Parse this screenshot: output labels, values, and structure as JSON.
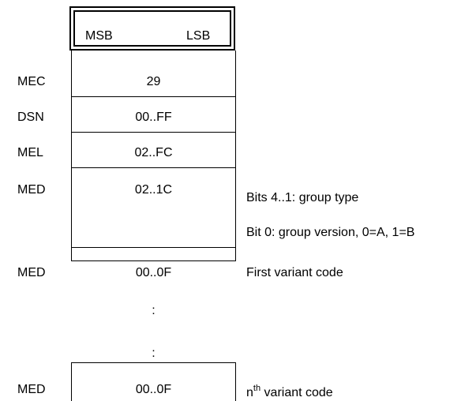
{
  "header": {
    "msb": "MSB",
    "lsb": "LSB"
  },
  "rows": [
    {
      "label": "MEC",
      "value": "29",
      "note": ""
    },
    {
      "label": "DSN",
      "value": "00..FF",
      "note": ""
    },
    {
      "label": "MEL",
      "value": "02..FC",
      "note": ""
    },
    {
      "label": "MED",
      "value": "02..1C",
      "note": "Bits 4..1: group type",
      "note2": "Bit 0: group version, 0=A, 1=B"
    },
    {
      "label": "MED",
      "value": "00..0F",
      "note": "First variant code"
    }
  ],
  "ellipsis": [
    ":",
    ":"
  ],
  "last_row": {
    "label": "MED",
    "value": "00..0F",
    "note_prefix": "n",
    "note_sup": "th",
    "note_suffix": " variant code"
  }
}
